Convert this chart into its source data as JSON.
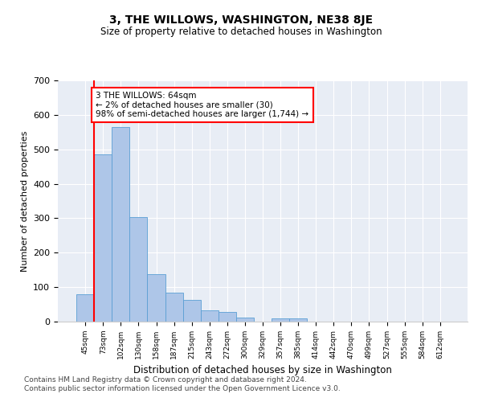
{
  "title": "3, THE WILLOWS, WASHINGTON, NE38 8JE",
  "subtitle": "Size of property relative to detached houses in Washington",
  "xlabel": "Distribution of detached houses by size in Washington",
  "ylabel": "Number of detached properties",
  "bar_color": "#aec6e8",
  "bar_edge_color": "#5a9fd4",
  "background_color": "#e8edf5",
  "categories": [
    "45sqm",
    "73sqm",
    "102sqm",
    "130sqm",
    "158sqm",
    "187sqm",
    "215sqm",
    "243sqm",
    "272sqm",
    "300sqm",
    "329sqm",
    "357sqm",
    "385sqm",
    "414sqm",
    "442sqm",
    "470sqm",
    "499sqm",
    "527sqm",
    "555sqm",
    "584sqm",
    "612sqm"
  ],
  "values": [
    80,
    485,
    565,
    303,
    137,
    85,
    63,
    33,
    27,
    12,
    0,
    10,
    10,
    0,
    0,
    0,
    0,
    0,
    0,
    0,
    0
  ],
  "ylim": [
    0,
    700
  ],
  "yticks": [
    0,
    100,
    200,
    300,
    400,
    500,
    600,
    700
  ],
  "annotation_text": "3 THE WILLOWS: 64sqm\n← 2% of detached houses are smaller (30)\n98% of semi-detached houses are larger (1,744) →",
  "annotation_box_color": "white",
  "annotation_box_edge_color": "red",
  "vline_color": "red",
  "footer_line1": "Contains HM Land Registry data © Crown copyright and database right 2024.",
  "footer_line2": "Contains public sector information licensed under the Open Government Licence v3.0."
}
